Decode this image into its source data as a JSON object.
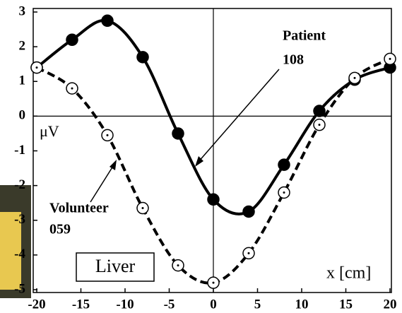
{
  "chart_data": {
    "type": "line",
    "x_label": "x [cm]",
    "y_label": "μV",
    "annotations": [
      [
        "Patient",
        "108"
      ],
      [
        "Volunteer",
        "059"
      ],
      "Liver"
    ],
    "xlim": [
      -20,
      20
    ],
    "xticks": [
      -20,
      -15,
      -10,
      -5,
      0,
      5,
      10,
      15,
      20
    ],
    "ylim": [
      -5,
      3
    ],
    "yticks": [
      -5,
      -4,
      -3,
      -2,
      -1,
      0,
      1,
      2,
      3
    ],
    "zero_lines": true,
    "x": [
      -20,
      -16,
      -12,
      -8,
      -4,
      0,
      4,
      8,
      12,
      16,
      20
    ],
    "series": [
      {
        "color": "#000000",
        "dashed": false,
        "marker": "filled",
        "values": [
          1.4,
          2.2,
          2.75,
          1.7,
          -0.5,
          -2.4,
          -2.75,
          -1.4,
          0.15,
          1.05,
          1.4
        ]
      },
      {
        "color": "#000000",
        "dashed": true,
        "marker": "open",
        "values": [
          1.4,
          0.8,
          -0.55,
          -2.65,
          -4.3,
          -4.8,
          -3.95,
          -2.2,
          -0.25,
          1.1,
          1.65
        ]
      }
    ]
  }
}
